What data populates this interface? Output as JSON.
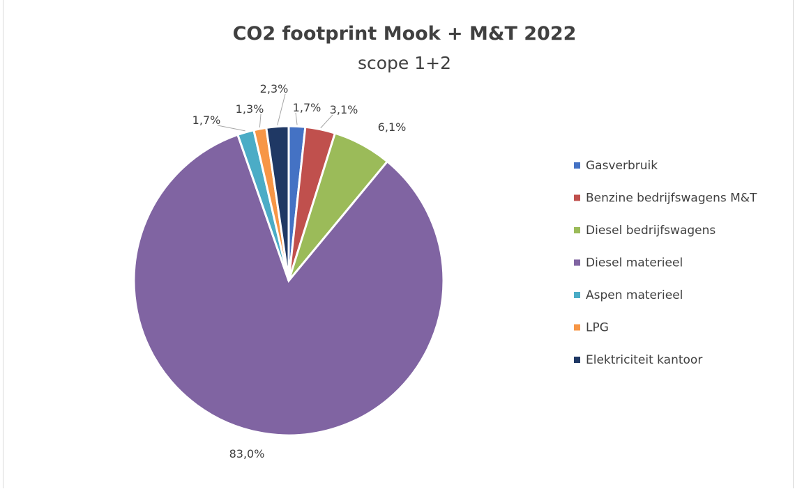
{
  "chart_data": {
    "type": "pie",
    "title": "CO2 footprint Mook + M&T 2022",
    "subtitle": "scope 1+2",
    "legend_position": "right",
    "slices": [
      {
        "name": "Gasverbruik",
        "value": 1.7,
        "label": "1,7%",
        "color": "#4472C4"
      },
      {
        "name": "Benzine bedrijfswagens M&T",
        "value": 3.1,
        "label": "3,1%",
        "color": "#C0504D"
      },
      {
        "name": "Diesel bedrijfswagens",
        "value": 6.1,
        "label": "6,1%",
        "color": "#9BBB59"
      },
      {
        "name": "Diesel materieel",
        "value": 83.0,
        "label": "83,0%",
        "color": "#8064A2"
      },
      {
        "name": "Aspen materieel",
        "value": 1.7,
        "label": "1,7%",
        "color": "#4BACC6"
      },
      {
        "name": "LPG",
        "value": 1.3,
        "label": "1,3%",
        "color": "#F79646"
      },
      {
        "name": "Elektriciteit kantoor",
        "value": 2.3,
        "label": "2,3%",
        "color": "#1F3864"
      }
    ]
  }
}
